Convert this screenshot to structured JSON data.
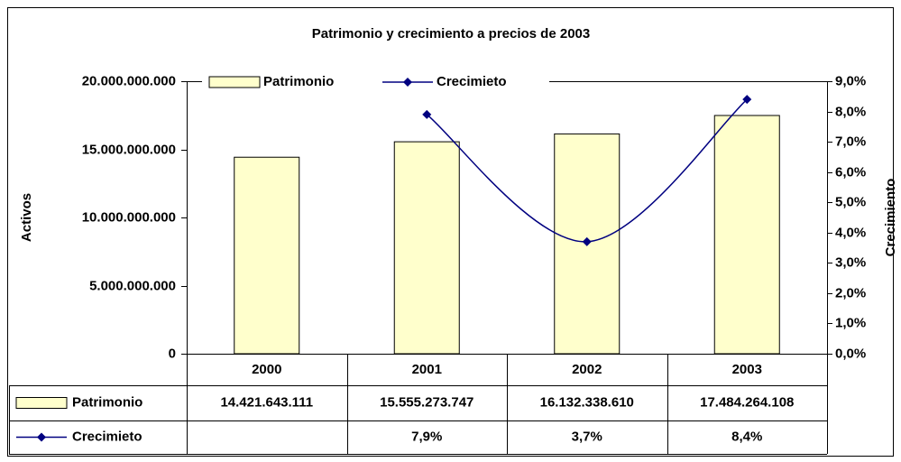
{
  "chart_data": {
    "type": "bar",
    "title": "Patrimonio y crecimiento a precios de 2003",
    "y_label": "Activos",
    "y2_label": "Crecimiento",
    "categories": [
      "2000",
      "2001",
      "2002",
      "2003"
    ],
    "series": [
      {
        "name": "Patrimonio",
        "type": "bar",
        "color": "#ffffcc",
        "values": [
          14421643111,
          15555273747,
          16132338610,
          17484264108
        ],
        "value_labels": [
          "14.421.643.111",
          "15.555.273.747",
          "16.132.338.610",
          "17.484.264.108"
        ]
      },
      {
        "name": "Crecimieto",
        "type": "line",
        "axis": "y2",
        "color": "#000080",
        "values": [
          null,
          7.9,
          3.7,
          8.4
        ],
        "value_labels": [
          null,
          "7,9%",
          "3,7%",
          "8,4%"
        ]
      }
    ],
    "ylim": [
      0,
      20000000000
    ],
    "yticks": [
      0,
      {
        "value": 5000000000,
        "label": "5.000.000.000"
      },
      {
        "value": 10000000000,
        "label": "10.000.000.000"
      },
      {
        "value": 15000000000,
        "label": "15.000.000.000"
      },
      {
        "value": 20000000000,
        "label": "20.000.000.000"
      }
    ],
    "y2lim": [
      0,
      9
    ],
    "y2ticks": [
      {
        "value": 0,
        "label": "0,0%"
      },
      {
        "value": 1,
        "label": "1,0%"
      },
      {
        "value": 2,
        "label": "2,0%"
      },
      {
        "value": 3,
        "label": "3,0%"
      },
      {
        "value": 4,
        "label": "4,0%"
      },
      {
        "value": 5,
        "label": "5,0%"
      },
      {
        "value": 6,
        "label": "6,0%"
      },
      {
        "value": 7,
        "label": "7,0%"
      },
      {
        "value": 8,
        "label": "8,0%"
      },
      {
        "value": 9,
        "label": "9,0%"
      }
    ],
    "grid": false,
    "legend": "top"
  }
}
